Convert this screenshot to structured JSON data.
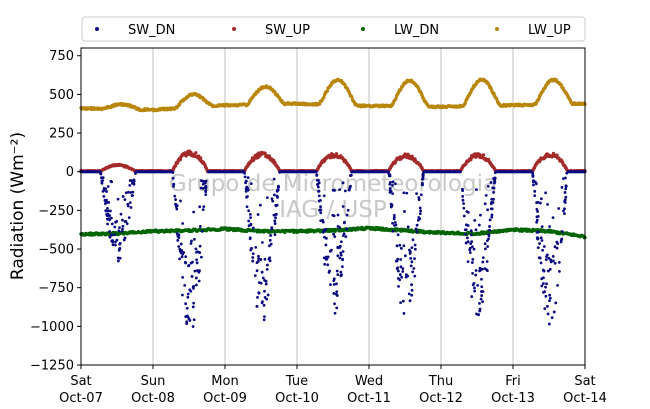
{
  "chart_data": {
    "type": "scatter",
    "ylabel": "Radiation (Wm⁻²)",
    "ylim": [
      -1250,
      800
    ],
    "xlim": [
      0,
      7
    ],
    "grid": "vertical",
    "legend": {
      "placement": "top",
      "ncol": 4
    },
    "watermark": {
      "line1": "Grupo de Micrometeorologia",
      "line2": "IAG / USP"
    },
    "x_ticks": [
      {
        "day": 0,
        "weekday": "Sat",
        "date": "Oct-07"
      },
      {
        "day": 1,
        "weekday": "Sun",
        "date": "Oct-08"
      },
      {
        "day": 2,
        "weekday": "Mon",
        "date": "Oct-09"
      },
      {
        "day": 3,
        "weekday": "Tue",
        "date": "Oct-10"
      },
      {
        "day": 4,
        "weekday": "Wed",
        "date": "Oct-11"
      },
      {
        "day": 5,
        "weekday": "Thu",
        "date": "Oct-12"
      },
      {
        "day": 6,
        "weekday": "Fri",
        "date": "Oct-13"
      },
      {
        "day": 7,
        "weekday": "Sat",
        "date": "Oct-14"
      }
    ],
    "y_ticks": [
      {
        "value": 750,
        "label": "750"
      },
      {
        "value": 500,
        "label": "500"
      },
      {
        "value": 250,
        "label": "250"
      },
      {
        "value": 0,
        "label": "0"
      },
      {
        "value": -250,
        "label": "−250"
      },
      {
        "value": -500,
        "label": "−500"
      },
      {
        "value": -750,
        "label": "−750"
      },
      {
        "value": -1000,
        "label": "−1000"
      },
      {
        "value": -1250,
        "label": "−1250"
      }
    ],
    "series": [
      {
        "name": "SW_DN",
        "color": "#0a0a80",
        "night": 0,
        "daily_min": [
          -580,
          -1040,
          -990,
          -920,
          -960,
          -960,
          -1000
        ]
      },
      {
        "name": "SW_UP",
        "color": "#a52a2a",
        "night": 5,
        "daily_max": [
          45,
          130,
          120,
          115,
          110,
          115,
          120
        ]
      },
      {
        "name": "LW_DN",
        "color": "#006400",
        "approx_range": [
          -420,
          -360
        ],
        "points": [
          [
            0.0,
            -405
          ],
          [
            0.5,
            -400
          ],
          [
            1.0,
            -385
          ],
          [
            1.5,
            -380
          ],
          [
            2.0,
            -370
          ],
          [
            2.5,
            -385
          ],
          [
            3.0,
            -385
          ],
          [
            3.5,
            -380
          ],
          [
            4.0,
            -365
          ],
          [
            4.5,
            -380
          ],
          [
            5.0,
            -395
          ],
          [
            5.5,
            -400
          ],
          [
            6.0,
            -375
          ],
          [
            6.5,
            -385
          ],
          [
            7.0,
            -420
          ]
        ]
      },
      {
        "name": "LW_UP",
        "color": "#b8860b",
        "night_values": [
          410,
          400,
          430,
          440,
          425,
          420,
          430,
          440
        ],
        "daily_max": [
          435,
          500,
          550,
          595,
          590,
          595,
          595
        ]
      }
    ]
  }
}
